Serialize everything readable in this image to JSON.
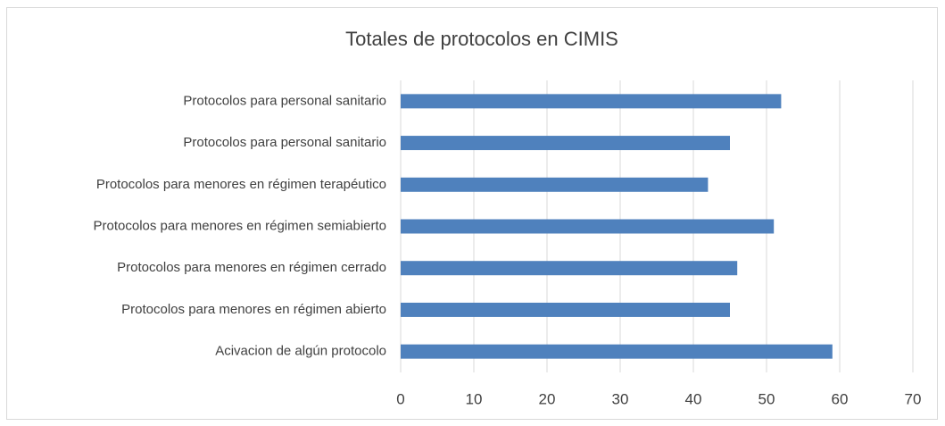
{
  "chart_data": {
    "type": "bar",
    "orientation": "horizontal",
    "title": "Totales de protocolos en CIMIS",
    "categories": [
      "Protocolos para personal  sanitario",
      "Protocolos para personal sanitario",
      "Protocolos para menores en régimen terapéutico",
      "Protocolos para menores en régimen semiabierto",
      "Protocolos para menores en régimen cerrado",
      "Protocolos para menores en régimen abierto",
      "Acivacion de algún protocolo"
    ],
    "values": [
      52,
      45,
      42,
      51,
      46,
      45,
      59
    ],
    "color": "#4f81bd",
    "xlim": [
      0,
      70
    ],
    "xticks": [
      0,
      10,
      20,
      30,
      40,
      50,
      60,
      70
    ],
    "grid": true
  }
}
